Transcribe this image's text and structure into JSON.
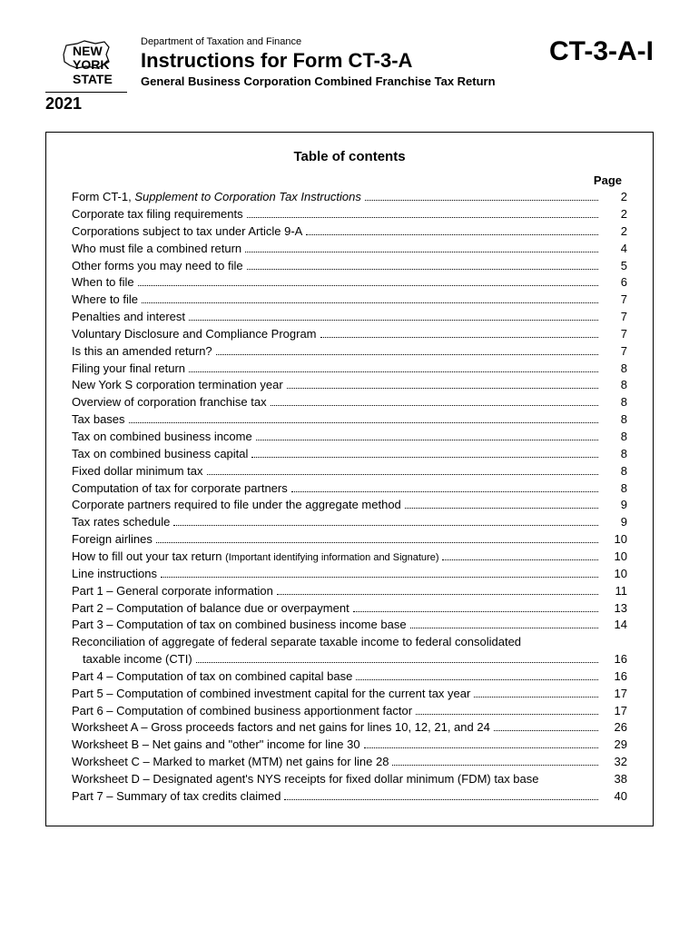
{
  "header": {
    "logo_line1": "NEW",
    "logo_line2": "YORK",
    "logo_line3": "STATE",
    "year": "2021",
    "department": "Department of Taxation and Finance",
    "title": "Instructions for Form CT-3-A",
    "subtitle": "General Business Corporation Combined Franchise Tax Return",
    "form_code": "CT-3-A-I"
  },
  "toc": {
    "title": "Table of contents",
    "page_label": "Page",
    "entries": [
      {
        "label_pre": "Form CT-1, ",
        "label_ital": "Supplement to Corporation Tax Instructions",
        "label_post": "",
        "page": "2"
      },
      {
        "label": "Corporate tax filing requirements",
        "page": "2"
      },
      {
        "label": "Corporations subject to tax under Article 9-A",
        "page": "2"
      },
      {
        "label": "Who must file a combined return",
        "page": "4"
      },
      {
        "label": "Other forms you may need to file",
        "page": "5"
      },
      {
        "label": "When to file",
        "page": "6"
      },
      {
        "label": "Where to file",
        "page": "7"
      },
      {
        "label": "Penalties and interest",
        "page": "7"
      },
      {
        "label": "Voluntary Disclosure and Compliance Program",
        "page": "7"
      },
      {
        "label": "Is this an amended return?",
        "page": "7"
      },
      {
        "label": "Filing your final return",
        "page": "8"
      },
      {
        "label": "New York S corporation termination year",
        "page": "8"
      },
      {
        "label": "Overview of corporation franchise tax",
        "page": "8"
      },
      {
        "label": "Tax bases",
        "page": "8"
      },
      {
        "label": "Tax on combined business income",
        "page": "8"
      },
      {
        "label": "Tax on combined business capital",
        "page": "8"
      },
      {
        "label": "Fixed dollar minimum tax",
        "page": "8"
      },
      {
        "label": "Computation of tax for corporate partners",
        "page": "8"
      },
      {
        "label": "Corporate partners required to file under the aggregate method",
        "page": "9"
      },
      {
        "label": "Tax rates schedule",
        "page": "9"
      },
      {
        "label": "Foreign airlines",
        "page": "10"
      },
      {
        "label_pre": "How to fill out your tax return ",
        "label_paren": "(Important identifying information and Signature)",
        "page": "10"
      },
      {
        "label": "Line instructions",
        "page": "10"
      },
      {
        "label": "Part 1 – General corporate information",
        "page": "11"
      },
      {
        "label": "Part 2 – Computation of balance due or overpayment",
        "page": "13"
      },
      {
        "label": "Part 3 – Computation of tax on combined business income base",
        "page": "14"
      },
      {
        "label": "Reconciliation of aggregate of federal separate taxable income to federal consolidated",
        "wrap": true
      },
      {
        "label": "taxable income (CTI)",
        "cont": true,
        "page": "16"
      },
      {
        "label": "Part 4 – Computation of tax on combined capital base",
        "page": "16"
      },
      {
        "label": "Part 5 – Computation of combined investment capital for the current tax year",
        "page": "17"
      },
      {
        "label": "Part 6 – Computation of combined business apportionment factor",
        "page": "17"
      },
      {
        "label": "Worksheet A – Gross proceeds factors and net gains for lines 10, 12, 21, and 24",
        "page": "26"
      },
      {
        "label": "Worksheet B – Net gains and \"other\" income for line 30",
        "page": "29"
      },
      {
        "label": "Worksheet C – Marked to market (MTM) net gains for line 28",
        "page": "32"
      },
      {
        "label": "Worksheet D – Designated agent's NYS receipts for fixed dollar minimum (FDM) tax base",
        "page": "38",
        "nodots": true
      },
      {
        "label": "Part 7 – Summary of tax credits claimed",
        "page": "40"
      }
    ]
  }
}
